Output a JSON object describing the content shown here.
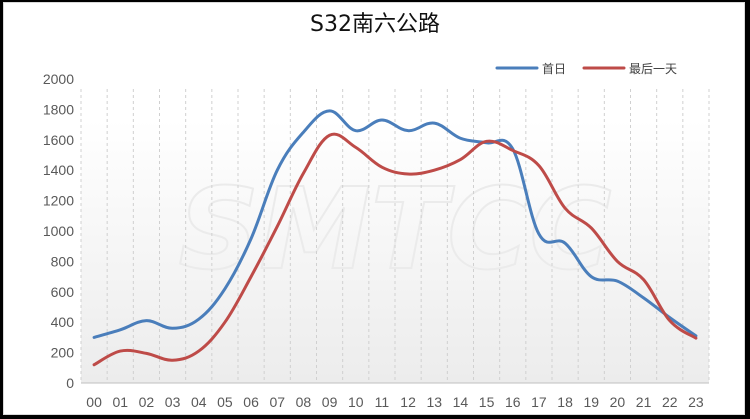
{
  "chart_data": {
    "type": "line",
    "title": "S32南六公路",
    "categories": [
      "00",
      "01",
      "02",
      "03",
      "04",
      "05",
      "06",
      "07",
      "08",
      "09",
      "10",
      "11",
      "12",
      "13",
      "14",
      "15",
      "16",
      "17",
      "18",
      "19",
      "20",
      "21",
      "22",
      "23"
    ],
    "yticks": [
      "0",
      "200",
      "400",
      "600",
      "800",
      "1000",
      "1200",
      "1400",
      "1600",
      "1800",
      "2000"
    ],
    "ylim": [
      0,
      2000
    ],
    "grid": "vertical-dashed",
    "legend_position": "top-right",
    "watermark": "SMTCC",
    "series": [
      {
        "name": "首日",
        "color": "#4a7ebb",
        "values": [
          300,
          350,
          410,
          360,
          420,
          620,
          950,
          1400,
          1650,
          1790,
          1660,
          1730,
          1660,
          1710,
          1610,
          1580,
          1540,
          980,
          920,
          700,
          670,
          560,
          430,
          310
        ]
      },
      {
        "name": "最后一天",
        "color": "#be4b48",
        "values": [
          120,
          210,
          195,
          150,
          210,
          400,
          700,
          1030,
          1380,
          1630,
          1550,
          1420,
          1375,
          1400,
          1470,
          1590,
          1530,
          1430,
          1150,
          1020,
          800,
          680,
          410,
          295
        ]
      }
    ]
  }
}
